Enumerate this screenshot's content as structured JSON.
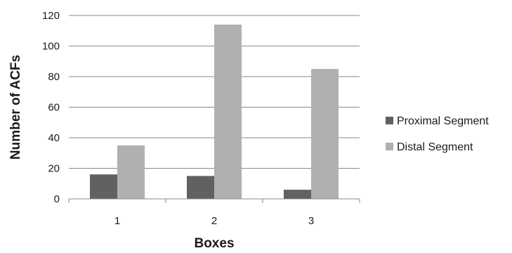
{
  "chart_data": {
    "type": "bar",
    "categories": [
      "1",
      "2",
      "3"
    ],
    "series": [
      {
        "name": "Proximal Segment",
        "values": [
          16,
          15,
          6
        ],
        "color": "#616161"
      },
      {
        "name": "Distal Segment",
        "values": [
          35,
          114,
          85
        ],
        "color": "#b0b0b0"
      }
    ],
    "xlabel": "Boxes",
    "ylabel": "Number of  ACFs",
    "ylim": [
      0,
      120
    ],
    "yticks": [
      0,
      20,
      40,
      60,
      80,
      100,
      120
    ],
    "grid": true,
    "gridColor": "#888888",
    "legend": "right"
  }
}
